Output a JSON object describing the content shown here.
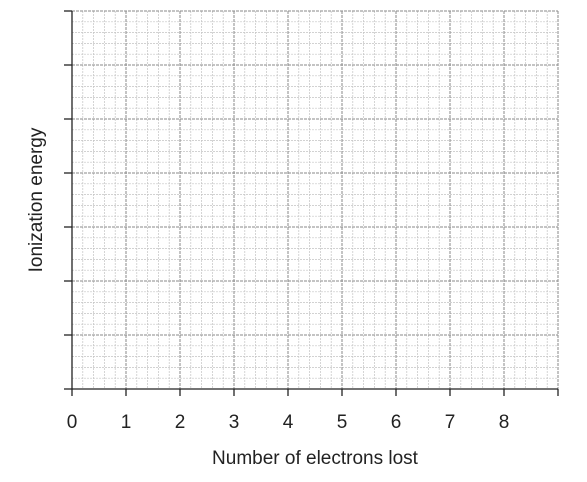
{
  "chart_data": {
    "type": "line",
    "title": "",
    "xlabel": "Number of electrons lost",
    "ylabel": "Ionization energy",
    "x_ticks": [
      0,
      1,
      2,
      3,
      4,
      5,
      6,
      7,
      8
    ],
    "xlim": [
      0,
      9
    ],
    "y_major_divisions": 7,
    "y_tick_labels": [],
    "grid": true,
    "minor_per_major_x": 5,
    "minor_per_major_y": 5,
    "series": [],
    "colors": {
      "axis": "#222222",
      "major_grid": "#8a8a8a",
      "minor_grid": "#c4c4c4"
    }
  }
}
